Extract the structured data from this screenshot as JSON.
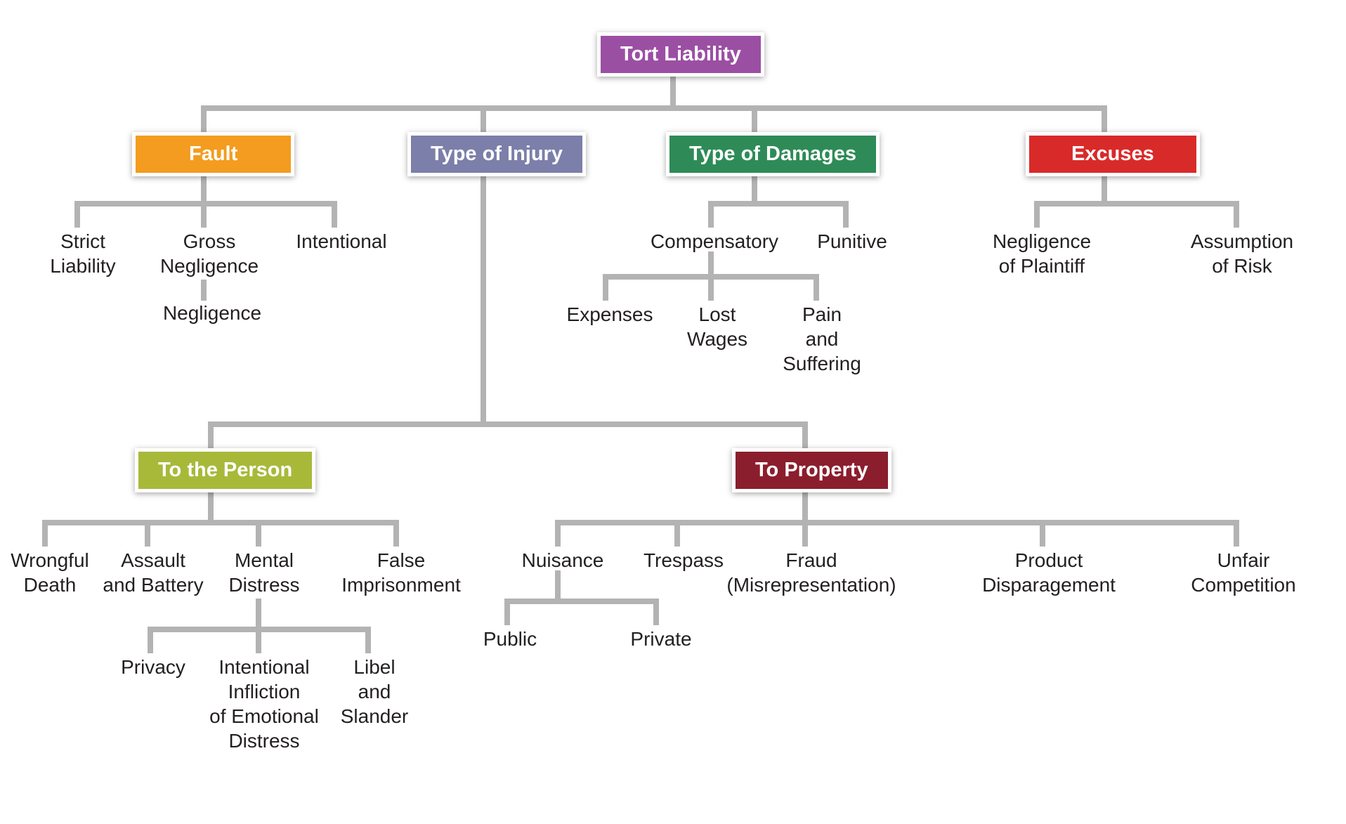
{
  "diagram": {
    "type": "tree",
    "line_color": "#b3b3b3",
    "line_width": 8,
    "font_family": "Myriad Pro, Segoe UI, Arial, sans-serif",
    "box_fontsize": 29,
    "leaf_fontsize": 28,
    "leaf_color": "#231f20",
    "box_border_color": "#ffffff",
    "box_border_width": 5,
    "background_color": "#ffffff",
    "boxes": {
      "root": {
        "label": "Tort Liability",
        "color": "#9b4fa3"
      },
      "fault": {
        "label": "Fault",
        "color": "#f39c1f"
      },
      "injury": {
        "label": "Type of Injury",
        "color": "#7b7fa9"
      },
      "damages": {
        "label": "Type of Damages",
        "color": "#2e8b57"
      },
      "excuses": {
        "label": "Excuses",
        "color": "#d92a2a"
      },
      "person": {
        "label": "To the Person",
        "color": "#a8b93a"
      },
      "property": {
        "label": "To Property",
        "color": "#8b1e2d"
      }
    },
    "leaves": {
      "strict_liability": "Strict\nLiability",
      "gross_negligence": "Gross\nNegligence",
      "intentional": "Intentional",
      "negligence": "Negligence",
      "compensatory": "Compensatory",
      "punitive": "Punitive",
      "expenses": "Expenses",
      "lost_wages": "Lost\nWages",
      "pain_suffering": "Pain\nand\nSuffering",
      "neg_plaintiff": "Negligence\nof Plaintiff",
      "assump_risk": "Assumption\nof Risk",
      "wrongful_death": "Wrongful\nDeath",
      "assault_battery": "Assault\nand Battery",
      "mental_distress": "Mental\nDistress",
      "false_imprison": "False\nImprisonment",
      "privacy": "Privacy",
      "iied": "Intentional\nInfliction\nof Emotional\nDistress",
      "libel_slander": "Libel\nand\nSlander",
      "nuisance": "Nuisance",
      "trespass": "Trespass",
      "fraud": "Fraud\n(Misrepresentation)",
      "prod_disparage": "Product\nDisparagement",
      "unfair_comp": "Unfair\nCompetition",
      "public": "Public",
      "private": "Private"
    }
  }
}
